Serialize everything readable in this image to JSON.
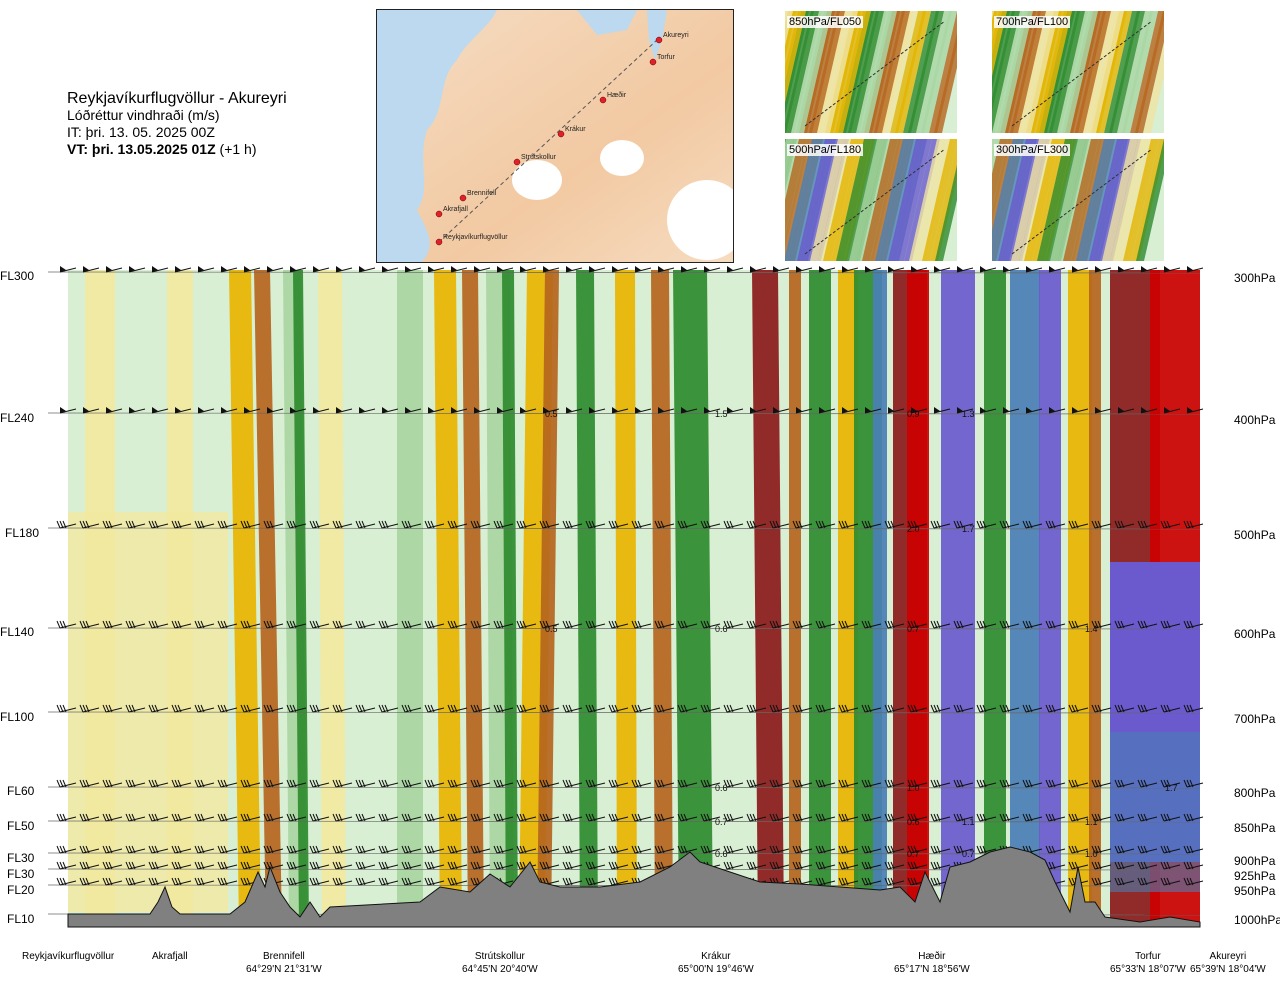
{
  "header": {
    "route": "Reykjavíkurflugvöllur - Akureyri",
    "variable": "Lóðréttur vindhraði (m/s)",
    "it": "IT: þri. 13. 05. 2025 00Z",
    "vt": "VT: þri. 13.05.2025 01Z",
    "vt_offset": "(+1 h)"
  },
  "map": {
    "points": [
      "Akureyri",
      "Torfur",
      "Hæðir",
      "Krákur",
      "Strútskollur",
      "Brennifell",
      "Akrafjall",
      "Reykjavíkurflugvöllur"
    ]
  },
  "thumbnails": [
    {
      "label": "850hPa/FL050"
    },
    {
      "label": "700hPa/FL100"
    },
    {
      "label": "500hPa/FL180"
    },
    {
      "label": "300hPa/FL300"
    }
  ],
  "levels": [
    {
      "fl": "FL300",
      "hpa": "300hPa"
    },
    {
      "fl": "FL240",
      "hpa": "400hPa"
    },
    {
      "fl": "FL180",
      "hpa": "500hPa"
    },
    {
      "fl": "FL140",
      "hpa": "600hPa"
    },
    {
      "fl": "FL100",
      "hpa": "700hPa"
    },
    {
      "fl": "FL60",
      "hpa": "800hPa"
    },
    {
      "fl": "FL50",
      "hpa": "850hPa"
    },
    {
      "fl": "FL30",
      "hpa": "900hPa"
    },
    {
      "fl": "FL30",
      "hpa": "925hPa"
    },
    {
      "fl": "FL20",
      "hpa": "950hPa"
    },
    {
      "fl": "FL10",
      "hpa": "1000hPa"
    }
  ],
  "locations": [
    {
      "name": "Reykjavíkurflugvöllur",
      "coord": ""
    },
    {
      "name": "Akrafjall",
      "coord": ""
    },
    {
      "name": "Brennifell",
      "coord": "64°29'N 21°31'W"
    },
    {
      "name": "Strútskollur",
      "coord": "64°45'N 20°40'W"
    },
    {
      "name": "Krákur",
      "coord": "65°00'N 19°46'W"
    },
    {
      "name": "Hæðir",
      "coord": "65°17'N 18°56'W"
    },
    {
      "name": "Torfur",
      "coord": "65°33'N 18°07'W"
    },
    {
      "name": "Akureyri",
      "coord": "65°39'N 18°04'W"
    }
  ],
  "chart_data": {
    "type": "heatmap",
    "title": "Lóðréttur vindhraði (m/s)",
    "x": [
      "Reykjavíkurflugvöllur",
      "Akrafjall",
      "Brennifell",
      "Strútskollur",
      "Krákur",
      "Hæðir",
      "Torfur",
      "Akureyri"
    ],
    "y_levels_hpa": [
      300,
      400,
      500,
      600,
      700,
      800,
      850,
      900,
      925,
      950,
      1000
    ],
    "colors": {
      "down_strong": "#cc0000",
      "down_medium": "#8b1a1a",
      "down_light": "#b5651d",
      "down_weak": "#e8b400",
      "down_faint": "#f2e9a0",
      "near_zero": "#d8efd4",
      "up_faint": "#a9d6a2",
      "up_weak": "#2e8b2e",
      "up_medium": "#4a7fb5",
      "up_strong": "#6a5acd",
      "terrain": "#808080"
    },
    "annotations": [
      {
        "x": "Strútskollur",
        "level": 400,
        "label": "0.5"
      },
      {
        "x": "Krákur",
        "level": 400,
        "label": "1.5"
      },
      {
        "x": "Hæðir",
        "level": 400,
        "label": "0.9"
      },
      {
        "x": "Hæðir",
        "level": 400,
        "label": "1.3"
      },
      {
        "x": "Hæðir",
        "level": 500,
        "label": "2.0"
      },
      {
        "x": "Hæðir",
        "level": 500,
        "label": "1.7"
      },
      {
        "x": "Strútskollur",
        "level": 600,
        "label": "0.5"
      },
      {
        "x": "Krákur",
        "level": 600,
        "label": "0.6"
      },
      {
        "x": "Hæðir",
        "level": 600,
        "label": "0.7"
      },
      {
        "x": "Torfur",
        "level": 600,
        "label": "1.4"
      },
      {
        "x": "Krákur",
        "level": 800,
        "label": "0.6"
      },
      {
        "x": "Hæðir",
        "level": 800,
        "label": "1.0"
      },
      {
        "x": "Akureyri",
        "level": 800,
        "label": "1.7"
      },
      {
        "x": "Krákur",
        "level": 850,
        "label": "0.7"
      },
      {
        "x": "Hæðir",
        "level": 850,
        "label": "0.6"
      },
      {
        "x": "Hæðir",
        "level": 850,
        "label": "1.1"
      },
      {
        "x": "Torfur",
        "level": 850,
        "label": "1.1"
      },
      {
        "x": "Krákur",
        "level": 900,
        "label": "0.6"
      },
      {
        "x": "Hæðir",
        "level": 900,
        "label": "0.7"
      },
      {
        "x": "Hæðir",
        "level": 900,
        "label": "0.7"
      },
      {
        "x": "Torfur",
        "level": 900,
        "label": "1.0"
      }
    ]
  }
}
